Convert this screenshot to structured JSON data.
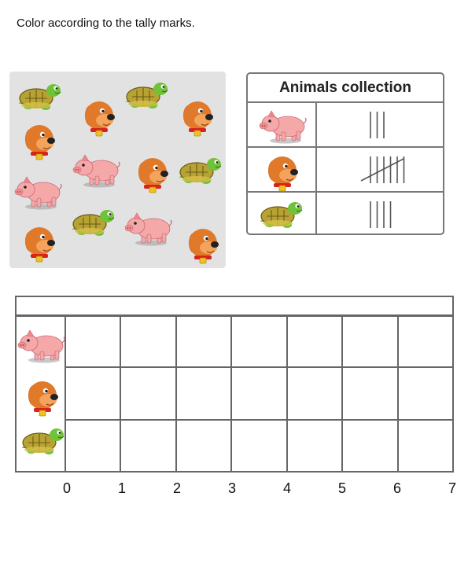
{
  "instruction": "Color according to the tally marks.",
  "panel": {
    "animals": [
      {
        "kind": "turtle"
      },
      {
        "kind": "dog"
      },
      {
        "kind": "turtle"
      },
      {
        "kind": "dog"
      },
      {
        "kind": "dog"
      },
      {
        "kind": "pig"
      },
      {
        "kind": "dog"
      },
      {
        "kind": "turtle"
      },
      {
        "kind": "pig"
      },
      {
        "kind": "dog"
      },
      {
        "kind": "turtle"
      },
      {
        "kind": "pig"
      },
      {
        "kind": "dog"
      }
    ]
  },
  "tally_table": {
    "title": "Animals collection",
    "rows": [
      {
        "animal": "pig",
        "count": 3
      },
      {
        "animal": "dog",
        "count": 6
      },
      {
        "animal": "turtle",
        "count": 4
      }
    ]
  },
  "graph": {
    "rows": [
      "pig",
      "dog",
      "turtle"
    ],
    "axis_labels": [
      "0",
      "1",
      "2",
      "3",
      "4",
      "5",
      "6",
      "7"
    ]
  },
  "colors": {
    "pig": "#f4a9a8",
    "dog": "#e07a2a",
    "turtle": "#6fc23a",
    "shell": "#b7a234",
    "panel": "#e2e2e2"
  }
}
